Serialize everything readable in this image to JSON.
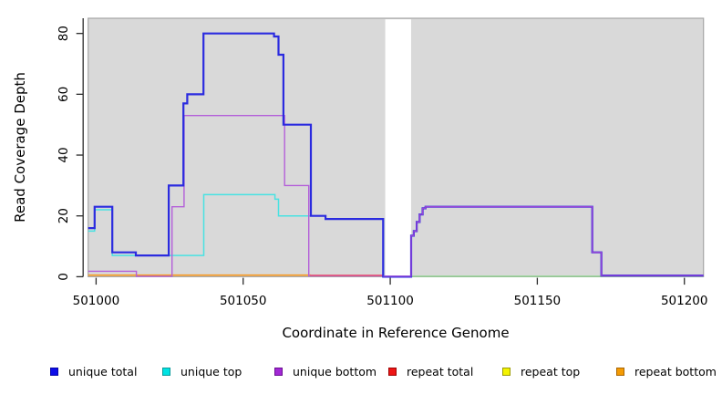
{
  "chart_data": {
    "type": "line",
    "title": "",
    "xlabel": "Coordinate in Reference Genome",
    "ylabel": "Read Coverage Depth",
    "x_ticks": [
      501000,
      501050,
      501100,
      501150,
      501200
    ],
    "y_ticks": [
      0,
      20,
      40,
      60,
      80
    ],
    "xlim": [
      500997.3,
      501206.5
    ],
    "ylim": [
      0,
      85
    ],
    "grid": false,
    "plot_bg_color": "#d9d9d9",
    "plot_border_color": "#a6a6a6",
    "gap": {
      "x_start": 501098,
      "x_end": 501107,
      "fill": "#ffffff",
      "note": "white no-data column"
    },
    "lines": [
      {
        "name": "baseline post-gap",
        "color": "#8ed48e",
        "width": 1.4,
        "points": [
          [
            501107.1,
            0.15
          ]
        ],
        "end": 501206.5
      },
      {
        "name": "repeat bottom",
        "color": "#f9991f",
        "width": 1.6,
        "points": [
          [
            500997.3,
            0.5
          ]
        ],
        "end": 501073
      },
      {
        "name": "unique top",
        "color": "#49e2e2",
        "width": 1.5,
        "points": [
          [
            500997.3,
            15
          ],
          [
            500999.5,
            22
          ],
          [
            501005.5,
            7
          ],
          [
            501036.6,
            27
          ],
          [
            501060.8,
            25.5
          ],
          [
            501062,
            20
          ],
          [
            501078,
            19
          ],
          [
            501097.7,
            0
          ]
        ],
        "end": 501097.7
      },
      {
        "name": "unique bottom",
        "color": "#b45fd9",
        "width": 1.4,
        "points": [
          [
            500997.3,
            1.8
          ],
          [
            501013.7,
            0.15
          ],
          [
            501025.8,
            23
          ],
          [
            501029.9,
            53
          ],
          [
            501064.1,
            30
          ],
          [
            501072.3,
            0.3
          ]
        ],
        "end": 501097.7
      },
      {
        "name": "repeat total",
        "color": "#e8506e",
        "width": 1.5,
        "points": [
          [
            501072.8,
            0.45
          ]
        ],
        "end": 501097.7
      },
      {
        "name": "unique total",
        "color": "#2b2bdf",
        "width": 2.2,
        "points": [
          [
            500997.3,
            16
          ],
          [
            500999.5,
            23
          ],
          [
            501005.5,
            8
          ],
          [
            501013.5,
            7
          ],
          [
            501024.7,
            30
          ],
          [
            501029.7,
            57
          ],
          [
            501031,
            60
          ],
          [
            501036.5,
            80
          ],
          [
            501060.5,
            79
          ],
          [
            501062,
            73
          ],
          [
            501063.7,
            50
          ],
          [
            501073,
            20
          ],
          [
            501078,
            19
          ],
          [
            501097.6,
            0
          ],
          [
            501107.1,
            13.5
          ],
          [
            501108,
            15
          ],
          [
            501109,
            18
          ],
          [
            501110,
            20.5
          ],
          [
            501111,
            22.5
          ],
          [
            501112,
            23
          ],
          [
            501168.7,
            8
          ],
          [
            501171.8,
            0.4
          ]
        ],
        "end": 501206.5
      },
      {
        "name": "unique bottom post-gap",
        "color": "#9a45d6",
        "width": 1.3,
        "points": [
          [
            501097.6,
            0.15
          ],
          [
            501107.1,
            13.5
          ],
          [
            501108,
            15
          ],
          [
            501109,
            18
          ],
          [
            501110,
            20.5
          ],
          [
            501111,
            22.5
          ],
          [
            501112,
            23
          ],
          [
            501168.7,
            8
          ],
          [
            501171.8,
            0.4
          ]
        ],
        "end": 501206.5
      }
    ],
    "legend": [
      {
        "label": "unique total",
        "fill": "#0d0de8",
        "border": "#0707a8"
      },
      {
        "label": "unique top",
        "fill": "#00e3e3",
        "border": "#0b9b9b"
      },
      {
        "label": "unique bottom",
        "fill": "#a228d5",
        "border": "#6a0f91"
      },
      {
        "label": "repeat total",
        "fill": "#ee1515",
        "border": "#9e0404"
      },
      {
        "label": "repeat top",
        "fill": "#f3f300",
        "border": "#9c9c05"
      },
      {
        "label": "repeat bottom",
        "fill": "#f49b04",
        "border": "#a86503"
      }
    ],
    "legend_position": "bottom"
  }
}
